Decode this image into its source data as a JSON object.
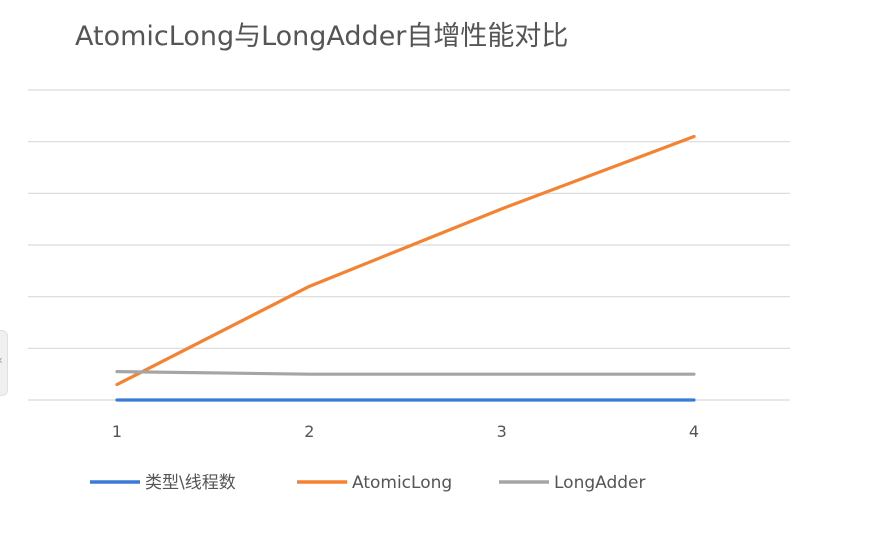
{
  "chart_data": {
    "type": "line",
    "title": "AtomicLong与LongAdder自增性能对比",
    "xlabel": "",
    "ylabel": "",
    "x": [
      "1",
      "2",
      "3",
      "4"
    ],
    "series": [
      {
        "name": "类型\\线程数",
        "color": "#3a7bd5",
        "values": [
          0,
          0,
          0,
          0
        ]
      },
      {
        "name": "AtomicLong",
        "color": "#f58230",
        "values": [
          0.3,
          2.2,
          3.7,
          5.1
        ]
      },
      {
        "name": "LongAdder",
        "color": "#a5a5a5",
        "values": [
          0.55,
          0.5,
          0.5,
          0.5
        ]
      }
    ],
    "ylim": [
      0,
      6
    ],
    "y_ticks_shown": false,
    "grid": true,
    "legend": "bottom"
  },
  "side_tab": {
    "glyph": "‹"
  }
}
